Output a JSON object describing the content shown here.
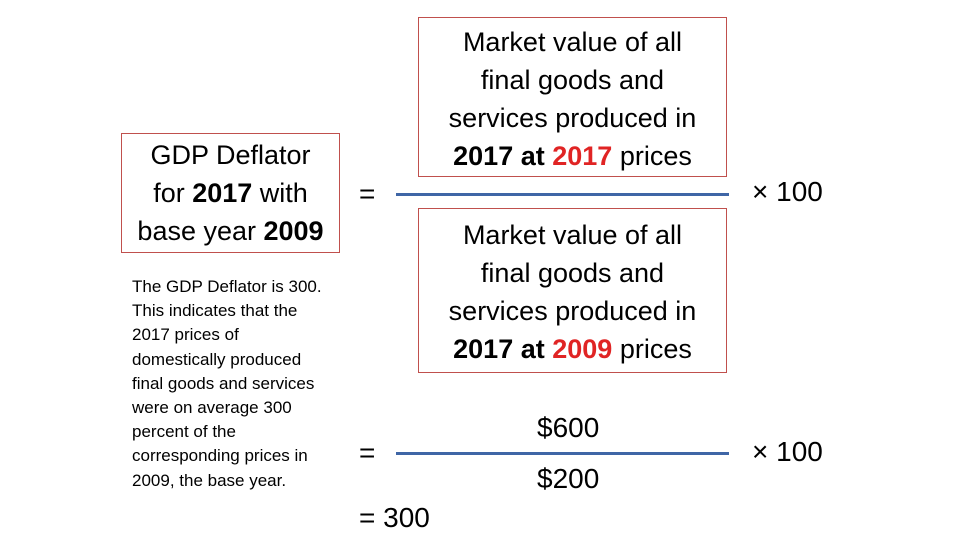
{
  "title_box": {
    "line1": "GDP Deflator",
    "line2_pre": "for ",
    "line2_year": "2017",
    "line2_post": " with",
    "line3_pre": "base year ",
    "line3_year": "2009"
  },
  "explanation": {
    "lines": [
      "The GDP Deflator is 300.",
      "This indicates that the",
      "2017 prices of",
      "domestically produced",
      "final goods and services",
      "were on average 300",
      "percent of the",
      "corresponding prices in",
      "2009, the base year."
    ]
  },
  "numerator": {
    "line1": "Market value of all",
    "line2": "final goods and",
    "line3": "services produced in",
    "year1": "2017",
    "at": " at ",
    "year2": "2017",
    "prices": " prices"
  },
  "denominator": {
    "line1": "Market value of all",
    "line2": "final goods and",
    "line3": "services produced in",
    "year1": "2017",
    "at": " at ",
    "year2": "2009",
    "prices": " prices"
  },
  "equals_1": "=",
  "multiplier_1": "× 100",
  "values": {
    "numerator": "$600",
    "denominator": "$200"
  },
  "equals_2": "=",
  "multiplier_2": "× 100",
  "result": "= 300",
  "colors": {
    "box_border": "#c0504d",
    "highlight_year": "#e02424",
    "fraction_line": "#3f66a6"
  }
}
